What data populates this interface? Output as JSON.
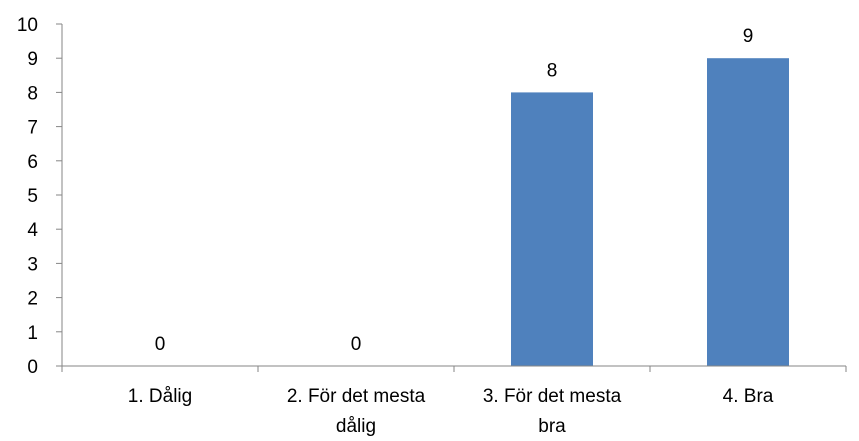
{
  "chart_data": {
    "type": "bar",
    "categories": [
      [
        "1. Dålig"
      ],
      [
        "2. För det mesta",
        "dålig"
      ],
      [
        "3. För det mesta",
        "bra"
      ],
      [
        "4. Bra"
      ]
    ],
    "values": [
      0,
      0,
      8,
      9
    ],
    "data_labels": [
      "0",
      "0",
      "8",
      "9"
    ],
    "y_ticks": [
      "0",
      "1",
      "2",
      "3",
      "4",
      "5",
      "6",
      "7",
      "8",
      "9",
      "10"
    ],
    "ylim": [
      0,
      10
    ],
    "title": "",
    "xlabel": "",
    "ylabel": "",
    "grid": false,
    "legend": "none",
    "colors": {
      "bar": "#4f81bd",
      "axis": "#868686",
      "text": "#000000"
    }
  }
}
